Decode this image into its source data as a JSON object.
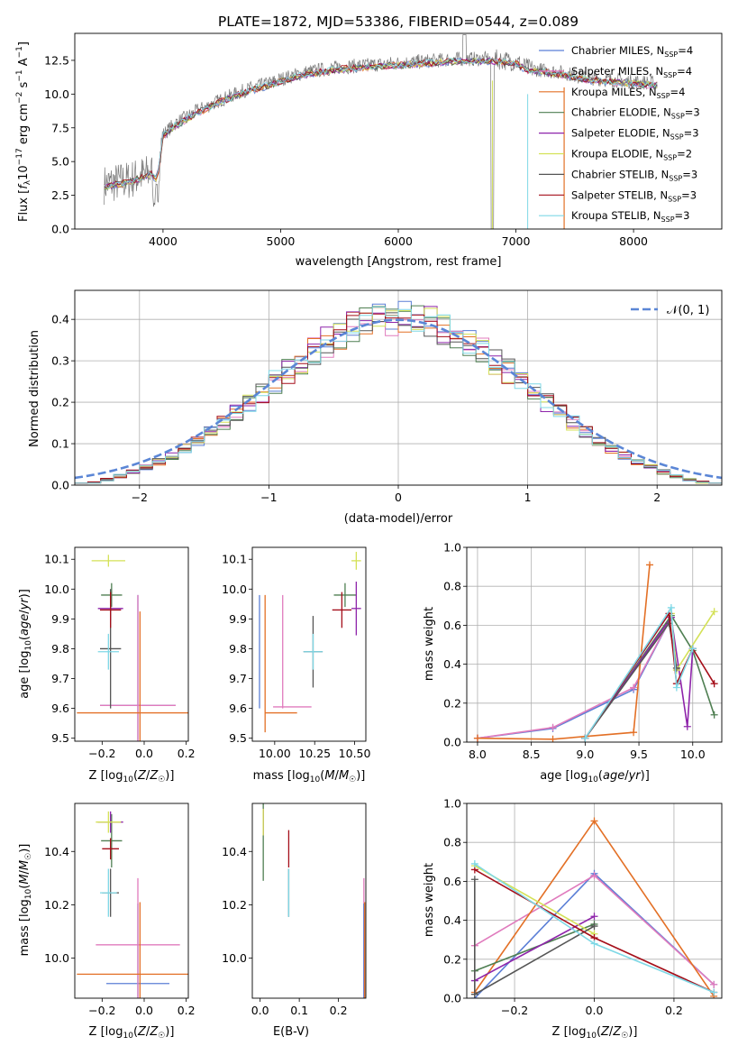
{
  "figure": {
    "title": "PLATE=1872, MJD=53386, FIBERID=0544, z=0.089"
  },
  "colors": {
    "Chabrier MILES": "#5b7fd6",
    "Salpeter MILES": "#e07bbd",
    "Kroupa MILES": "#e37026",
    "Chabrier ELODIE": "#4f7f52",
    "Salpeter ELODIE": "#8e24aa",
    "Kroupa ELODIE": "#d4e157",
    "Chabrier STELIB": "#555555",
    "Salpeter STELIB": "#a50f1a",
    "Kroupa STELIB": "#7fd8e6",
    "gaussian": "#5b86d6"
  },
  "chart_data": [
    {
      "id": "spectrum",
      "type": "line",
      "title": "PLATE=1872, MJD=53386, FIBERID=0544, z=0.089",
      "xlabel": "wavelength [Angstrom, rest frame]",
      "ylabel": "Flux [f_λ 10^-17 erg cm^-2 s^-1 A^-1]",
      "xlim": [
        3250,
        8750
      ],
      "ylim": [
        0,
        14.5
      ],
      "xticks": [
        4000,
        5000,
        6000,
        7000,
        8000
      ],
      "yticks": [
        0.0,
        2.5,
        5.0,
        7.5,
        10.0,
        12.5
      ],
      "grid": false,
      "legend_position": "top-right",
      "legend": [
        {
          "name": "Chabrier MILES",
          "nssp": "4"
        },
        {
          "name": "Salpeter MILES",
          "nssp": "4"
        },
        {
          "name": "Kroupa MILES",
          "nssp": "4"
        },
        {
          "name": "Chabrier ELODIE",
          "nssp": "3"
        },
        {
          "name": "Salpeter ELODIE",
          "nssp": "3"
        },
        {
          "name": "Kroupa ELODIE",
          "nssp": "2"
        },
        {
          "name": "Chabrier STELIB",
          "nssp": "3"
        },
        {
          "name": "Salpeter STELIB",
          "nssp": "3"
        },
        {
          "name": "Kroupa STELIB",
          "nssp": "3"
        }
      ],
      "data_envelope": {
        "x": [
          3500,
          3700,
          3900,
          3950,
          4000,
          4100,
          4300,
          4500,
          4700,
          4900,
          5000,
          5200,
          5500,
          6000,
          6500,
          6800,
          7000,
          7100,
          7400,
          7600,
          7900,
          8200
        ],
        "y": [
          3.3,
          3.6,
          4.2,
          3.8,
          7.0,
          7.8,
          8.8,
          9.6,
          10.3,
          10.8,
          11.1,
          11.6,
          12.0,
          12.3,
          12.6,
          12.6,
          12.4,
          11.9,
          11.6,
          11.2,
          11.0,
          10.8
        ]
      }
    },
    {
      "id": "residuals",
      "type": "histogram",
      "xlabel": "(data-model)/error",
      "ylabel": "Normed distribution",
      "xlim": [
        -2.5,
        2.5
      ],
      "ylim": [
        0,
        0.47
      ],
      "xticks": [
        -2,
        -1,
        0,
        1,
        2
      ],
      "yticks": [
        0.0,
        0.1,
        0.2,
        0.3,
        0.4
      ],
      "grid": true,
      "legend_position": "top-right",
      "gaussian_label": "𝒩(0, 1)",
      "bin_width": 0.1
    },
    {
      "id": "age_vs_Z",
      "type": "errorbar",
      "xlabel": "Z [log10(Z/Z☉)]",
      "ylabel": "age [log10(age/yr)]",
      "xlim": [
        -0.33,
        0.21
      ],
      "ylim": [
        9.49,
        10.14
      ],
      "xticks": [
        -0.2,
        0.0,
        0.2
      ],
      "yticks": [
        9.5,
        9.6,
        9.7,
        9.8,
        9.9,
        10.0,
        10.1
      ],
      "points": [
        {
          "model": "Chabrier MILES",
          "x": -0.03,
          "xerr": 0.18,
          "y": 9.61,
          "yerr": 0.37
        },
        {
          "model": "Salpeter MILES",
          "x": -0.03,
          "xerr": 0.18,
          "y": 9.61,
          "yerr": 0.37
        },
        {
          "model": "Kroupa MILES",
          "x": -0.02,
          "xerr": 0.3,
          "y": 9.585,
          "yerr": 0.34
        },
        {
          "model": "Chabrier ELODIE",
          "x": -0.155,
          "xerr": 0.05,
          "y": 9.98,
          "yerr": 0.04
        },
        {
          "model": "Salpeter ELODIE",
          "x": -0.16,
          "xerr": 0.06,
          "y": 9.935,
          "yerr": 0.04
        },
        {
          "model": "Kroupa ELODIE",
          "x": -0.17,
          "xerr": 0.08,
          "y": 10.095,
          "yerr": 0.02
        },
        {
          "model": "Chabrier STELIB",
          "x": -0.16,
          "xerr": 0.05,
          "y": 9.8,
          "yerr": 0.2
        },
        {
          "model": "Salpeter STELIB",
          "x": -0.16,
          "xerr": 0.05,
          "y": 9.93,
          "yerr": 0.06
        },
        {
          "model": "Kroupa STELIB",
          "x": -0.17,
          "xerr": 0.05,
          "y": 9.79,
          "yerr": 0.06
        }
      ]
    },
    {
      "id": "age_vs_mass",
      "type": "errorbar",
      "xlabel": "mass [log10(M/M☉)]",
      "ylabel": "",
      "xlim": [
        9.86,
        10.57
      ],
      "ylim": [
        9.49,
        10.14
      ],
      "xticks": [
        10.0,
        10.25,
        10.5
      ],
      "yticks": [
        9.5,
        9.6,
        9.7,
        9.8,
        9.9,
        10.0,
        10.1
      ],
      "points": [
        {
          "model": "Chabrier MILES",
          "x": 9.905,
          "xerr": 0.0,
          "y": 9.79,
          "yerr": 0.19
        },
        {
          "model": "Salpeter MILES",
          "x": 10.05,
          "xerr": 0.0,
          "y": 9.79,
          "yerr": 0.19
        },
        {
          "model": "Kroupa MILES",
          "x": 9.94,
          "xerr": 0.0,
          "y": 9.75,
          "yerr": 0.23
        },
        {
          "model": "Salpeter MILES band",
          "x": 10.11,
          "xerr": 0.12,
          "y": 9.605,
          "yerr": 0.0
        },
        {
          "model": "Kroupa MILES band",
          "x": 10.04,
          "xerr": 0.1,
          "y": 9.585,
          "yerr": 0.0
        },
        {
          "model": "Chabrier ELODIE",
          "x": 10.44,
          "xerr": 0.07,
          "y": 9.98,
          "yerr": 0.04
        },
        {
          "model": "Salpeter ELODIE",
          "x": 10.51,
          "xerr": 0.03,
          "y": 9.935,
          "yerr": 0.09
        },
        {
          "model": "Kroupa ELODIE",
          "x": 10.51,
          "xerr": 0.03,
          "y": 10.095,
          "yerr": 0.03
        },
        {
          "model": "Chabrier STELIB",
          "x": 10.24,
          "xerr": 0.06,
          "y": 9.79,
          "yerr": 0.12
        },
        {
          "model": "Salpeter STELIB",
          "x": 10.42,
          "xerr": 0.06,
          "y": 9.93,
          "yerr": 0.06
        },
        {
          "model": "Kroupa STELIB",
          "x": 10.24,
          "xerr": 0.06,
          "y": 9.79,
          "yerr": 0.06
        }
      ]
    },
    {
      "id": "massweight_vs_age",
      "type": "line",
      "xlabel": "age [log10(age/yr)]",
      "ylabel": "mass weight",
      "xlim": [
        7.9,
        10.27
      ],
      "ylim": [
        0,
        1
      ],
      "xticks": [
        8.0,
        8.5,
        9.0,
        9.5,
        10.0
      ],
      "yticks": [
        0.0,
        0.2,
        0.4,
        0.6,
        0.8,
        1.0
      ],
      "grid": true,
      "series": [
        {
          "model": "Chabrier MILES",
          "x": [
            8.0,
            8.7,
            9.45,
            9.8
          ],
          "y": [
            0.02,
            0.07,
            0.27,
            0.64
          ]
        },
        {
          "model": "Salpeter MILES",
          "x": [
            8.0,
            8.7,
            9.45,
            9.8
          ],
          "y": [
            0.02,
            0.075,
            0.28,
            0.64
          ]
        },
        {
          "model": "Kroupa MILES",
          "x": [
            8.0,
            8.7,
            9.45,
            9.6
          ],
          "y": [
            0.02,
            0.015,
            0.05,
            0.91
          ]
        },
        {
          "model": "Chabrier ELODIE",
          "x": [
            9.0,
            9.8,
            10.0,
            10.2
          ],
          "y": [
            0.02,
            0.65,
            0.47,
            0.14
          ]
        },
        {
          "model": "Salpeter ELODIE",
          "x": [
            9.0,
            9.8,
            9.95,
            10.0
          ],
          "y": [
            0.02,
            0.64,
            0.08,
            0.48
          ]
        },
        {
          "model": "Kroupa ELODIE",
          "x": [
            9.8,
            9.85,
            10.2
          ],
          "y": [
            0.66,
            0.37,
            0.67
          ]
        },
        {
          "model": "Chabrier STELIB",
          "x": [
            9.0,
            9.78,
            9.85
          ],
          "y": [
            0.02,
            0.61,
            0.38
          ]
        },
        {
          "model": "Salpeter STELIB",
          "x": [
            9.0,
            9.78,
            9.85,
            10.0,
            10.2
          ],
          "y": [
            0.02,
            0.66,
            0.3,
            0.48,
            0.3
          ]
        },
        {
          "model": "Kroupa STELIB",
          "x": [
            9.0,
            9.8,
            9.85,
            10.0
          ],
          "y": [
            0.02,
            0.69,
            0.28,
            0.48
          ]
        }
      ]
    },
    {
      "id": "mass_vs_Z",
      "type": "errorbar",
      "xlabel": "Z [log10(Z/Z☉)]",
      "ylabel": "mass [log10(M/M☉)]",
      "xlim": [
        -0.33,
        0.21
      ],
      "ylim": [
        9.85,
        10.58
      ],
      "xticks": [
        -0.2,
        0.0,
        0.2
      ],
      "yticks": [
        10.0,
        10.2,
        10.4
      ],
      "points": [
        {
          "model": "Chabrier MILES",
          "x": -0.03,
          "xerr": 0.15,
          "y": 9.905,
          "yerr": 0.3
        },
        {
          "model": "Salpeter MILES",
          "x": -0.03,
          "xerr": 0.2,
          "y": 10.05,
          "yerr": 0.25
        },
        {
          "model": "Kroupa MILES",
          "x": -0.02,
          "xerr": 0.3,
          "y": 9.94,
          "yerr": 0.27
        },
        {
          "model": "Chabrier ELODIE",
          "x": -0.155,
          "xerr": 0.05,
          "y": 10.44,
          "yerr": 0.1
        },
        {
          "model": "Salpeter ELODIE",
          "x": -0.16,
          "xerr": 0.06,
          "y": 10.51,
          "yerr": 0.04
        },
        {
          "model": "Kroupa ELODIE",
          "x": -0.17,
          "xerr": 0.06,
          "y": 10.51,
          "yerr": 0.04
        },
        {
          "model": "Chabrier STELIB",
          "x": -0.16,
          "xerr": 0.04,
          "y": 10.245,
          "yerr": 0.09
        },
        {
          "model": "Salpeter STELIB",
          "x": -0.16,
          "xerr": 0.04,
          "y": 10.41,
          "yerr": 0.04
        },
        {
          "model": "Kroupa STELIB",
          "x": -0.17,
          "xerr": 0.04,
          "y": 10.245,
          "yerr": 0.09
        }
      ]
    },
    {
      "id": "mass_vs_ebv",
      "type": "errorbar",
      "xlabel": "E(B-V)",
      "ylabel": "",
      "xlim": [
        -0.02,
        0.27
      ],
      "ylim": [
        9.85,
        10.58
      ],
      "xticks": [
        0.0,
        0.1,
        0.2
      ],
      "yticks": [
        10.0,
        10.2,
        10.4
      ],
      "points": [
        {
          "model": "Chabrier ELODIE",
          "x": 0.008,
          "xerr": 0,
          "y": 10.44,
          "yerr": 0.15
        },
        {
          "model": "Salpeter ELODIE",
          "x": 0.008,
          "xerr": 0,
          "y": 10.51,
          "yerr": 0.05
        },
        {
          "model": "Kroupa ELODIE",
          "x": 0.008,
          "xerr": 0,
          "y": 10.51,
          "yerr": 0.05
        },
        {
          "model": "Salpeter STELIB",
          "x": 0.073,
          "xerr": 0,
          "y": 10.41,
          "yerr": 0.07
        },
        {
          "model": "Chabrier STELIB",
          "x": 0.073,
          "xerr": 0,
          "y": 10.245,
          "yerr": 0.09
        },
        {
          "model": "Kroupa STELIB",
          "x": 0.073,
          "xerr": 0,
          "y": 10.245,
          "yerr": 0.09
        },
        {
          "model": "Salpeter MILES",
          "x": 0.265,
          "xerr": 0,
          "y": 10.05,
          "yerr": 0.25
        },
        {
          "model": "Chabrier MILES",
          "x": 0.265,
          "xerr": 0,
          "y": 9.905,
          "yerr": 0.3
        },
        {
          "model": "Kroupa MILES",
          "x": 0.267,
          "xerr": 0,
          "y": 9.94,
          "yerr": 0.27
        }
      ]
    },
    {
      "id": "massweight_vs_Z",
      "type": "line",
      "xlabel": "Z [log10(Z/Z☉)]",
      "ylabel": "mass weight",
      "xlim": [
        -0.32,
        0.32
      ],
      "ylim": [
        0,
        1
      ],
      "xticks": [
        -0.2,
        0.0,
        0.2
      ],
      "yticks": [
        0.0,
        0.2,
        0.4,
        0.6,
        0.8,
        1.0
      ],
      "grid": true,
      "series": [
        {
          "model": "Chabrier MILES",
          "x": [
            -0.3,
            0.0,
            0.3
          ],
          "y": [
            0.0,
            0.64,
            0.07
          ]
        },
        {
          "model": "Salpeter MILES",
          "x": [
            -0.3,
            0.0,
            0.3
          ],
          "y": [
            0.27,
            0.63,
            0.07
          ]
        },
        {
          "model": "Kroupa MILES",
          "x": [
            -0.3,
            0.0,
            0.3
          ],
          "y": [
            0.03,
            0.91,
            0.01
          ]
        },
        {
          "model": "Chabrier ELODIE",
          "x": [
            -0.3,
            0.0
          ],
          "y": [
            0.14,
            0.38
          ]
        },
        {
          "model": "Salpeter ELODIE",
          "x": [
            -0.3,
            0.0
          ],
          "y": [
            0.09,
            0.42
          ]
        },
        {
          "model": "Kroupa ELODIE",
          "x": [
            -0.3,
            0.0
          ],
          "y": [
            0.68,
            0.33
          ]
        },
        {
          "model": "Chabrier STELIB",
          "x": [
            -0.3,
            -0.3,
            0.0
          ],
          "y": [
            0.61,
            0.02,
            0.37
          ]
        },
        {
          "model": "Salpeter STELIB",
          "x": [
            -0.3,
            0.0,
            0.3
          ],
          "y": [
            0.66,
            0.31,
            0.03
          ]
        },
        {
          "model": "Kroupa STELIB",
          "x": [
            -0.3,
            0.0,
            0.3
          ],
          "y": [
            0.69,
            0.28,
            0.03
          ]
        }
      ]
    }
  ]
}
